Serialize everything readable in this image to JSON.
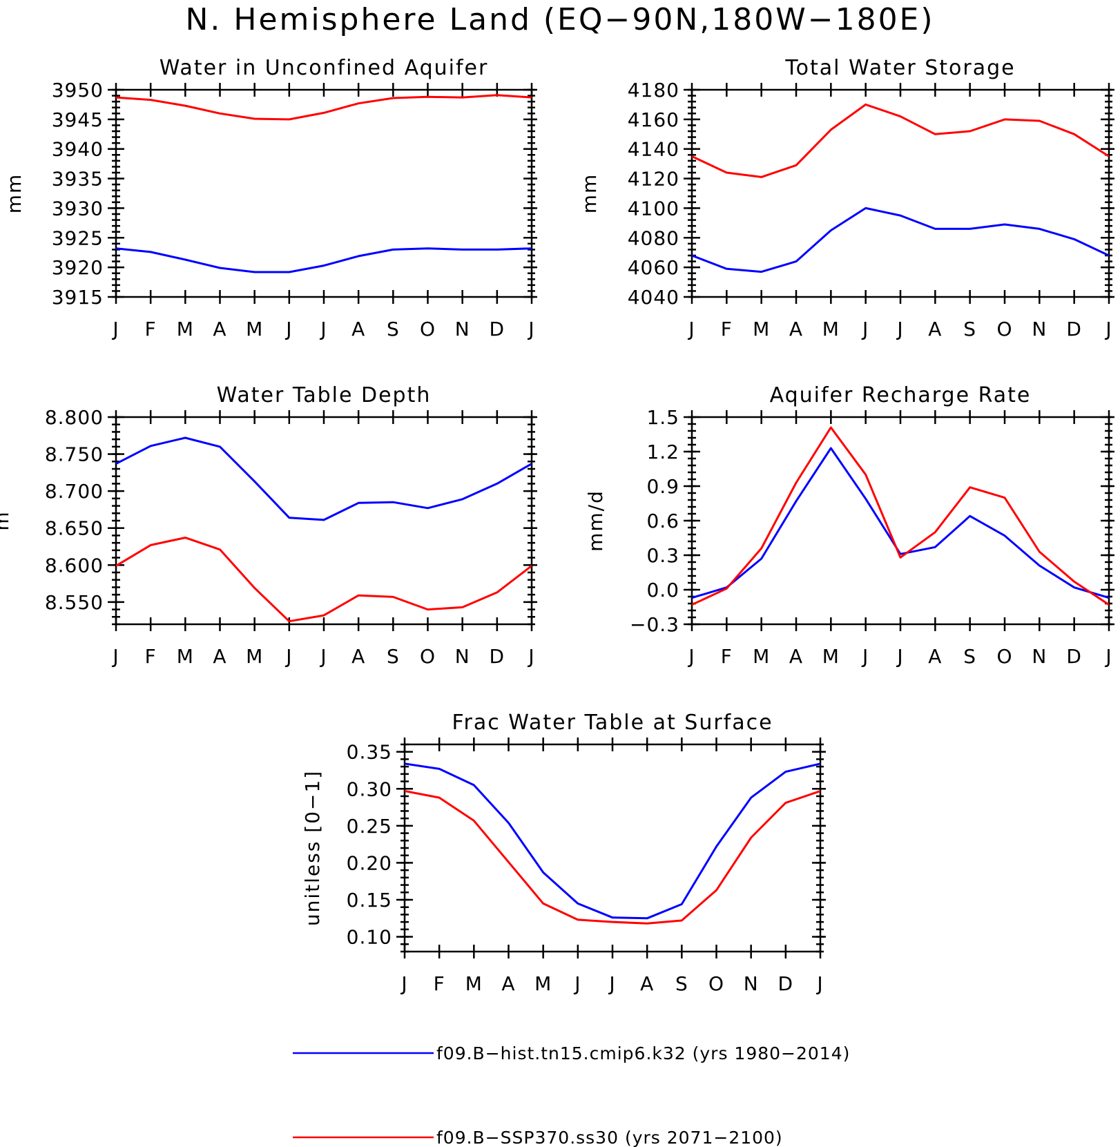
{
  "title": "N. Hemisphere Land (EQ−90N,180W−180E)",
  "colors": {
    "hist": "#0000ff",
    "ssp": "#ff0000"
  },
  "legend": [
    {
      "label": "f09.B−hist.tn15.cmip6.k32 (yrs 1980−2014)",
      "color": "#0000ff"
    },
    {
      "label": "f09.B−SSP370.ss30 (yrs 2071−2100)",
      "color": "#ff0000"
    }
  ],
  "chart_data": [
    {
      "type": "line",
      "title": "Water in Unconfined Aquifer",
      "ylabel": "mm",
      "categories": [
        "J",
        "F",
        "M",
        "A",
        "M",
        "J",
        "J",
        "A",
        "S",
        "O",
        "N",
        "D",
        "J"
      ],
      "ylim": [
        3915,
        3950
      ],
      "yticks": [
        3915,
        3920,
        3925,
        3930,
        3935,
        3940,
        3945,
        3950
      ],
      "yticklabels": [
        "3915",
        "3920",
        "3925",
        "3930",
        "3935",
        "3940",
        "3945",
        "3950"
      ],
      "series": [
        {
          "key": "hist",
          "values": [
            3923.2,
            3922.6,
            3921.3,
            3919.9,
            3919.2,
            3919.2,
            3920.3,
            3921.9,
            3923.0,
            3923.2,
            3923.0,
            3923.0,
            3923.2
          ]
        },
        {
          "key": "ssp",
          "values": [
            3948.7,
            3948.3,
            3947.3,
            3946.0,
            3945.1,
            3945.0,
            3946.1,
            3947.7,
            3948.6,
            3948.8,
            3948.7,
            3949.1,
            3948.7
          ]
        }
      ]
    },
    {
      "type": "line",
      "title": "Total Water Storage",
      "ylabel": "mm",
      "categories": [
        "J",
        "F",
        "M",
        "A",
        "M",
        "J",
        "J",
        "A",
        "S",
        "O",
        "N",
        "D",
        "J"
      ],
      "ylim": [
        4040,
        4180
      ],
      "yticks": [
        4040,
        4060,
        4080,
        4100,
        4120,
        4140,
        4160,
        4180
      ],
      "yticklabels": [
        "4040",
        "4060",
        "4080",
        "4100",
        "4120",
        "4140",
        "4160",
        "4180"
      ],
      "series": [
        {
          "key": "hist",
          "values": [
            4068,
            4059,
            4057,
            4064,
            4085,
            4100,
            4095,
            4086,
            4086,
            4089,
            4086,
            4079,
            4068
          ]
        },
        {
          "key": "ssp",
          "values": [
            4135,
            4124,
            4121,
            4129,
            4153,
            4170,
            4162,
            4150,
            4152,
            4160,
            4159,
            4150,
            4135
          ]
        }
      ]
    },
    {
      "type": "line",
      "title": "Water Table Depth",
      "ylabel": "m",
      "categories": [
        "J",
        "F",
        "M",
        "A",
        "M",
        "J",
        "J",
        "A",
        "S",
        "O",
        "N",
        "D",
        "J"
      ],
      "ylim": [
        8.52,
        8.8
      ],
      "yticks": [
        8.55,
        8.6,
        8.65,
        8.7,
        8.75,
        8.8
      ],
      "yticklabels": [
        "8.550",
        "8.600",
        "8.650",
        "8.700",
        "8.750",
        "8.800"
      ],
      "series": [
        {
          "key": "hist",
          "values": [
            8.737,
            8.761,
            8.772,
            8.76,
            8.713,
            8.664,
            8.661,
            8.684,
            8.685,
            8.677,
            8.689,
            8.71,
            8.737
          ]
        },
        {
          "key": "ssp",
          "values": [
            8.599,
            8.627,
            8.637,
            8.621,
            8.569,
            8.524,
            8.532,
            8.559,
            8.557,
            8.54,
            8.543,
            8.563,
            8.599
          ]
        }
      ]
    },
    {
      "type": "line",
      "title": "Aquifer Recharge Rate",
      "ylabel": "mm/d",
      "categories": [
        "J",
        "F",
        "M",
        "A",
        "M",
        "J",
        "J",
        "A",
        "S",
        "O",
        "N",
        "D",
        "J"
      ],
      "ylim": [
        -0.3,
        1.5
      ],
      "yticks": [
        -0.3,
        0.0,
        0.3,
        0.6,
        0.9,
        1.2,
        1.5
      ],
      "yticklabels": [
        "−0.3",
        "0.0",
        "0.3",
        "0.6",
        "0.9",
        "1.2",
        "1.5"
      ],
      "series": [
        {
          "key": "hist",
          "values": [
            -0.07,
            0.02,
            0.27,
            0.77,
            1.23,
            0.79,
            0.31,
            0.37,
            0.64,
            0.47,
            0.21,
            0.02,
            -0.07
          ]
        },
        {
          "key": "ssp",
          "values": [
            -0.13,
            0.01,
            0.36,
            0.93,
            1.41,
            1.0,
            0.28,
            0.5,
            0.89,
            0.8,
            0.33,
            0.07,
            -0.13
          ]
        }
      ]
    },
    {
      "type": "line",
      "title": "Frac Water Table at Surface",
      "ylabel": "unitless [0−1]",
      "categories": [
        "J",
        "F",
        "M",
        "A",
        "M",
        "J",
        "J",
        "A",
        "S",
        "O",
        "N",
        "D",
        "J"
      ],
      "ylim": [
        0.08,
        0.36
      ],
      "yticks": [
        0.1,
        0.15,
        0.2,
        0.25,
        0.3,
        0.35
      ],
      "yticklabels": [
        "0.10",
        "0.15",
        "0.20",
        "0.25",
        "0.30",
        "0.35"
      ],
      "series": [
        {
          "key": "hist",
          "values": [
            0.334,
            0.327,
            0.305,
            0.254,
            0.187,
            0.145,
            0.126,
            0.125,
            0.144,
            0.222,
            0.288,
            0.323,
            0.334
          ]
        },
        {
          "key": "ssp",
          "values": [
            0.297,
            0.288,
            0.257,
            0.201,
            0.145,
            0.123,
            0.12,
            0.118,
            0.122,
            0.163,
            0.234,
            0.281,
            0.297
          ]
        }
      ]
    }
  ]
}
